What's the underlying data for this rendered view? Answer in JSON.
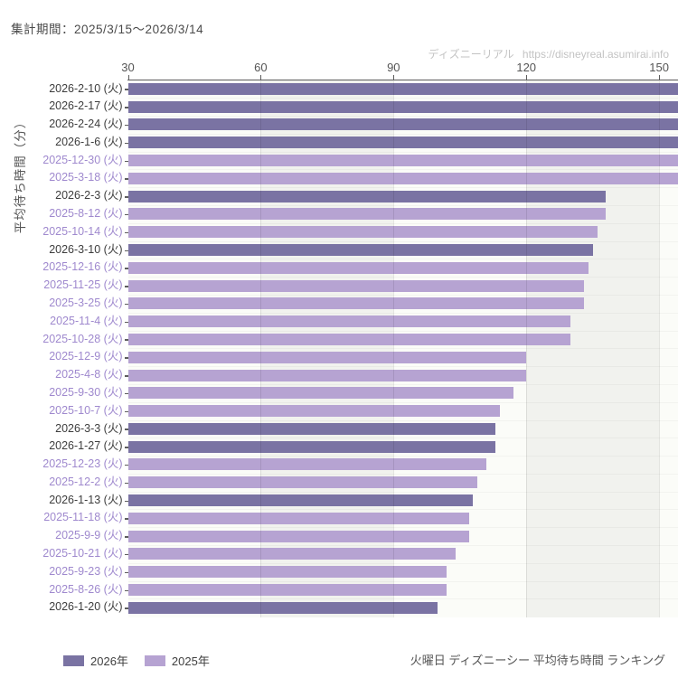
{
  "header": {
    "period_label": "集計期間：2025/3/15〜2026/3/14"
  },
  "watermark": {
    "site_name": "ディズニーリアル",
    "site_url": "https://disneyreal.asumirai.info"
  },
  "footer": {
    "caption": "火曜日 ディズニーシー 平均待ち時間 ランキング",
    "legend": [
      {
        "label": "2026年",
        "color": "#7a73a3"
      },
      {
        "label": "2025年",
        "color": "#b6a3d2"
      }
    ]
  },
  "chart_data": {
    "type": "bar",
    "orientation": "horizontal",
    "x_axis_position": "top",
    "ylabel": "平均待ち時間（分）",
    "xlabel": "",
    "x_ticks": [
      30,
      60,
      90,
      120,
      150
    ],
    "xlim": [
      30,
      154
    ],
    "grid": "vertical-bands-alternating",
    "note": "bars drawn from axis minimum 30; clipped rows exceed the visible axis maximum",
    "colors": {
      "bar_2026": "#7a73a3",
      "bar_2025": "#b6a3d2",
      "label_2026": "#3d3d3d",
      "label_2025": "#9f89ce",
      "band_gray": "#f1f2ee",
      "band_light": "#fbfcf8"
    },
    "rows": [
      {
        "label": "2026-2-10 (火)",
        "year": "2026",
        "value": 155,
        "clipped": true
      },
      {
        "label": "2026-2-17 (火)",
        "year": "2026",
        "value": 155,
        "clipped": true
      },
      {
        "label": "2026-2-24 (火)",
        "year": "2026",
        "value": 155,
        "clipped": true
      },
      {
        "label": "2026-1-6 (火)",
        "year": "2026",
        "value": 155,
        "clipped": true
      },
      {
        "label": "2025-12-30 (火)",
        "year": "2025",
        "value": 155,
        "clipped": true
      },
      {
        "label": "2025-3-18 (火)",
        "year": "2025",
        "value": 155,
        "clipped": true
      },
      {
        "label": "2026-2-3 (火)",
        "year": "2026",
        "value": 138,
        "clipped": false
      },
      {
        "label": "2025-8-12 (火)",
        "year": "2025",
        "value": 138,
        "clipped": false
      },
      {
        "label": "2025-10-14 (火)",
        "year": "2025",
        "value": 136,
        "clipped": false
      },
      {
        "label": "2026-3-10 (火)",
        "year": "2026",
        "value": 135,
        "clipped": false
      },
      {
        "label": "2025-12-16 (火)",
        "year": "2025",
        "value": 134,
        "clipped": false
      },
      {
        "label": "2025-11-25 (火)",
        "year": "2025",
        "value": 133,
        "clipped": false
      },
      {
        "label": "2025-3-25 (火)",
        "year": "2025",
        "value": 133,
        "clipped": false
      },
      {
        "label": "2025-11-4 (火)",
        "year": "2025",
        "value": 130,
        "clipped": false
      },
      {
        "label": "2025-10-28 (火)",
        "year": "2025",
        "value": 130,
        "clipped": false
      },
      {
        "label": "2025-12-9 (火)",
        "year": "2025",
        "value": 120,
        "clipped": false
      },
      {
        "label": "2025-4-8 (火)",
        "year": "2025",
        "value": 120,
        "clipped": false
      },
      {
        "label": "2025-9-30 (火)",
        "year": "2025",
        "value": 117,
        "clipped": false
      },
      {
        "label": "2025-10-7 (火)",
        "year": "2025",
        "value": 114,
        "clipped": false
      },
      {
        "label": "2026-3-3 (火)",
        "year": "2026",
        "value": 113,
        "clipped": false
      },
      {
        "label": "2026-1-27 (火)",
        "year": "2026",
        "value": 113,
        "clipped": false
      },
      {
        "label": "2025-12-23 (火)",
        "year": "2025",
        "value": 111,
        "clipped": false
      },
      {
        "label": "2025-12-2 (火)",
        "year": "2025",
        "value": 109,
        "clipped": false
      },
      {
        "label": "2026-1-13 (火)",
        "year": "2026",
        "value": 108,
        "clipped": false
      },
      {
        "label": "2025-11-18 (火)",
        "year": "2025",
        "value": 107,
        "clipped": false
      },
      {
        "label": "2025-9-9 (火)",
        "year": "2025",
        "value": 107,
        "clipped": false
      },
      {
        "label": "2025-10-21 (火)",
        "year": "2025",
        "value": 104,
        "clipped": false
      },
      {
        "label": "2025-9-23 (火)",
        "year": "2025",
        "value": 102,
        "clipped": false
      },
      {
        "label": "2025-8-26 (火)",
        "year": "2025",
        "value": 102,
        "clipped": false
      },
      {
        "label": "2026-1-20 (火)",
        "year": "2026",
        "value": 100,
        "clipped": false
      }
    ]
  }
}
